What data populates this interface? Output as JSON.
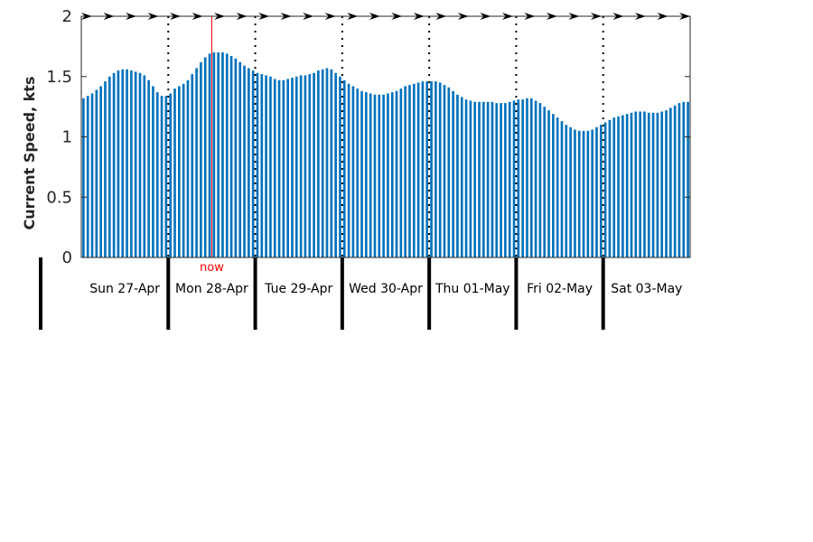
{
  "chart_data": {
    "type": "bar",
    "ylabel": "Current Speed, kts",
    "ylim": [
      0,
      2
    ],
    "yticks": [
      "0",
      "0.5",
      "1",
      "1.5",
      "2"
    ],
    "x_range_hours": [
      0,
      168
    ],
    "grid": false,
    "bar_color": "#0072bd",
    "now_color": "#ff0000",
    "now_label": "now",
    "now_hour": 36,
    "days": [
      "Sun 27-Apr",
      "Mon 28-Apr",
      "Tue 29-Apr",
      "Wed 30-Apr",
      "Thu 01-May",
      "Fri 02-May",
      "Sat 03-May"
    ],
    "speed_kts": [
      1.32,
      1.34,
      1.36,
      1.39,
      1.42,
      1.46,
      1.5,
      1.53,
      1.55,
      1.56,
      1.56,
      1.55,
      1.54,
      1.53,
      1.51,
      1.47,
      1.42,
      1.37,
      1.34,
      1.34,
      1.36,
      1.4,
      1.42,
      1.44,
      1.47,
      1.52,
      1.57,
      1.62,
      1.66,
      1.69,
      1.7,
      1.7,
      1.7,
      1.69,
      1.67,
      1.65,
      1.62,
      1.59,
      1.57,
      1.55,
      1.53,
      1.52,
      1.51,
      1.5,
      1.48,
      1.47,
      1.47,
      1.48,
      1.49,
      1.5,
      1.51,
      1.51,
      1.52,
      1.53,
      1.55,
      1.56,
      1.57,
      1.56,
      1.53,
      1.5,
      1.47,
      1.44,
      1.42,
      1.4,
      1.38,
      1.37,
      1.36,
      1.35,
      1.35,
      1.35,
      1.36,
      1.37,
      1.38,
      1.4,
      1.42,
      1.43,
      1.44,
      1.45,
      1.46,
      1.46,
      1.46,
      1.46,
      1.45,
      1.43,
      1.41,
      1.38,
      1.35,
      1.33,
      1.31,
      1.3,
      1.29,
      1.29,
      1.29,
      1.29,
      1.29,
      1.28,
      1.28,
      1.28,
      1.29,
      1.3,
      1.31,
      1.31,
      1.32,
      1.32,
      1.3,
      1.28,
      1.25,
      1.22,
      1.19,
      1.16,
      1.13,
      1.1,
      1.08,
      1.06,
      1.05,
      1.05,
      1.05,
      1.06,
      1.08,
      1.1,
      1.12,
      1.14,
      1.16,
      1.17,
      1.18,
      1.19,
      1.2,
      1.21,
      1.21,
      1.21,
      1.2,
      1.2,
      1.2,
      1.21,
      1.22,
      1.24,
      1.26,
      1.28,
      1.29,
      1.29
    ]
  }
}
